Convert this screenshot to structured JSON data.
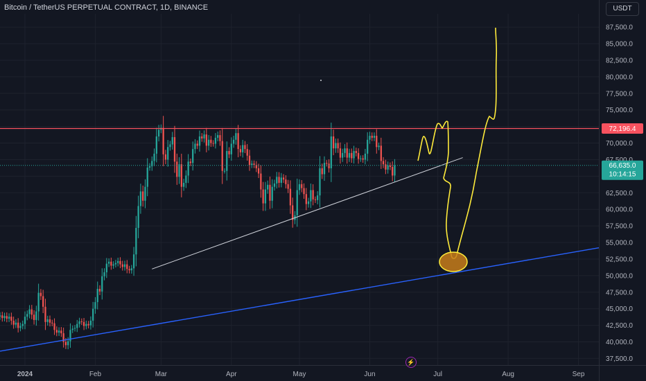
{
  "header": {
    "title": "Bitcoin / TetherUS PERPETUAL CONTRACT, 1D, BINANCE",
    "currency_button": "USDT"
  },
  "markers": {
    "resistance_label": "72,196.4",
    "last_price_label": "66,635.0",
    "countdown_label": "10:14:15",
    "bolt_icon": "lightning-icon"
  },
  "colors": {
    "background": "#131722",
    "up": "#26a69a",
    "down": "#ef5350",
    "resistance": "#f7525f",
    "trendline_blue": "#2962ff",
    "trendline_white": "#d1d4dc",
    "drawing_yellow": "#ffeb3b",
    "ellipse_fill": "#c77d1a"
  },
  "chart_data": {
    "type": "candlestick",
    "title": "Bitcoin / TetherUS PERPETUAL CONTRACT, 1D, BINANCE",
    "ylim": [
      36500,
      89500
    ],
    "y_ticks": [
      37500,
      40000,
      42500,
      45000,
      47500,
      50000,
      52500,
      55000,
      57500,
      60000,
      62500,
      65000,
      67500,
      70000,
      72500,
      75000,
      77500,
      80000,
      82500,
      85000,
      87500
    ],
    "y_tick_labels": [
      "37,500.0",
      "40,000.0",
      "42,500.0",
      "45,000.0",
      "47,500.0",
      "50,000.0",
      "52,500.0",
      "55,000.0",
      "57,500.0",
      "60,000.0",
      "62,500.0",
      "65,000.0",
      "67,500.0",
      "70,000.0",
      "72,500.0",
      "75,000.0",
      "77,500.0",
      "80,000.0",
      "82,500.0",
      "85,000.0",
      "87,500.0"
    ],
    "x_labels": [
      {
        "date": "2024-01-01",
        "text": "2024"
      },
      {
        "date": "2024-02-01",
        "text": "Feb"
      },
      {
        "date": "2024-03-01",
        "text": "Mar"
      },
      {
        "date": "2024-04-01",
        "text": "Apr"
      },
      {
        "date": "2024-05-01",
        "text": "May"
      },
      {
        "date": "2024-06-01",
        "text": "Jun"
      },
      {
        "date": "2024-07-01",
        "text": "Jul"
      },
      {
        "date": "2024-08-01",
        "text": "Aug"
      },
      {
        "date": "2024-09-01",
        "text": "Sep"
      }
    ],
    "xlim": [
      "2023-12-21",
      "2024-09-10"
    ],
    "candles_start": "2023-12-21",
    "closes": [
      44000,
      43600,
      43900,
      43500,
      43800,
      43200,
      42600,
      42900,
      42100,
      42400,
      42700,
      43800,
      44200,
      44900,
      44100,
      43300,
      44600,
      47400,
      46900,
      45300,
      43000,
      43400,
      42900,
      42800,
      41800,
      41400,
      41700,
      41300,
      40000,
      39500,
      40100,
      41800,
      42000,
      42100,
      42700,
      43100,
      43000,
      42400,
      42700,
      42500,
      43200,
      45000,
      46000,
      48000,
      47600,
      49900,
      50500,
      51800,
      52100,
      51500,
      51700,
      51900,
      52200,
      51700,
      51300,
      51700,
      51000,
      50800,
      51100,
      53200,
      57200,
      60500,
      62700,
      61300,
      63400,
      66300,
      66500,
      67300,
      68400,
      71000,
      72000,
      72300,
      68300,
      67500,
      69400,
      69800,
      70900,
      67200,
      64900,
      66800,
      63400,
      64000,
      65100,
      67200,
      67000,
      69100,
      69900,
      69600,
      71000,
      70700,
      71300,
      69600,
      70500,
      70000,
      69900,
      70800,
      71200,
      70300,
      65800,
      65800,
      68800,
      68300,
      69900,
      70500,
      71500,
      69100,
      68600,
      69700,
      69100,
      68100,
      66700,
      66900,
      66700,
      66200,
      65400,
      63000,
      60900,
      63000,
      63700,
      61300,
      63400,
      63900,
      64900,
      64000,
      64800,
      64500,
      63800,
      63100,
      60600,
      58400,
      59100,
      62900,
      63800,
      63200,
      62300,
      60800,
      61200,
      62900,
      61500,
      61400,
      62100,
      66200,
      65300,
      67000,
      66900,
      66200,
      71000,
      69200,
      70000,
      69200,
      67800,
      68500,
      69200,
      67800,
      68500,
      67700,
      68800,
      68500,
      67600,
      67700,
      67500,
      68400,
      70500,
      71100,
      70800,
      71100,
      69400,
      69600,
      67300,
      66800,
      66000,
      66600,
      66400,
      65100,
      66635
    ],
    "resistance_level": 72196.4,
    "last_price": 66635.0,
    "countdown": "10:14:15",
    "trendline_blue": {
      "from": [
        "2023-12-21",
        38600
      ],
      "to": [
        "2024-09-10",
        54200
      ]
    },
    "trendline_white": {
      "from": [
        "2024-02-26",
        51000
      ],
      "to": [
        "2024-07-12",
        67800
      ]
    }
  }
}
